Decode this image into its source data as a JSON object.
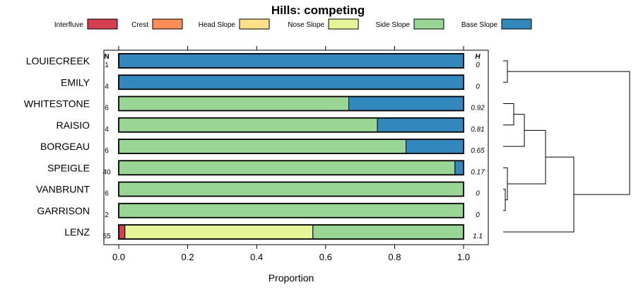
{
  "chart_data": {
    "type": "bar",
    "orientation": "horizontal-stacked",
    "title": "Hills: competing",
    "xlabel": "Proportion",
    "ylabel": "",
    "xlim": [
      0,
      1
    ],
    "x_ticks": [
      0.0,
      0.2,
      0.4,
      0.6,
      0.8,
      1.0
    ],
    "x_tick_labels": [
      "0.0",
      "0.2",
      "0.4",
      "0.6",
      "0.8",
      "1.0"
    ],
    "n_header": "N",
    "h_header": "H",
    "legend_position": "top",
    "categories_legend": [
      {
        "name": "Interfluve",
        "color": "#D53E4F"
      },
      {
        "name": "Crest",
        "color": "#FC8D59"
      },
      {
        "name": "Head Slope",
        "color": "#FEE08B"
      },
      {
        "name": "Nose Slope",
        "color": "#E6F598"
      },
      {
        "name": "Side Slope",
        "color": "#99D594"
      },
      {
        "name": "Base Slope",
        "color": "#3288BD"
      }
    ],
    "rows": [
      {
        "name": "LOUIECREEK",
        "n": "1",
        "h": "0",
        "values": [
          0,
          0,
          0,
          0,
          0,
          1.0
        ]
      },
      {
        "name": "EMILY",
        "n": "4",
        "h": "0",
        "values": [
          0,
          0,
          0,
          0,
          0,
          1.0
        ]
      },
      {
        "name": "WHITESTONE",
        "n": "6",
        "h": "0.92",
        "values": [
          0,
          0,
          0,
          0,
          0.667,
          0.333
        ]
      },
      {
        "name": "RAISIO",
        "n": "4",
        "h": "0.81",
        "values": [
          0,
          0,
          0,
          0,
          0.75,
          0.25
        ]
      },
      {
        "name": "BORGEAU",
        "n": "6",
        "h": "0.65",
        "values": [
          0,
          0,
          0,
          0,
          0.833,
          0.167
        ]
      },
      {
        "name": "SPEIGLE",
        "n": "40",
        "h": "0.17",
        "values": [
          0,
          0,
          0,
          0,
          0.975,
          0.025
        ]
      },
      {
        "name": "VANBRUNT",
        "n": "6",
        "h": "0",
        "values": [
          0,
          0,
          0,
          0,
          1.0,
          0
        ]
      },
      {
        "name": "GARRISON",
        "n": "2",
        "h": "0",
        "values": [
          0,
          0,
          0,
          0,
          1.0,
          0
        ]
      },
      {
        "name": "LENZ",
        "n": "55",
        "h": "1.1",
        "values": [
          0.018,
          0,
          0,
          0.545,
          0.437,
          0
        ]
      }
    ],
    "dendrogram": "hierarchical clustering of rows (shown at right)"
  }
}
